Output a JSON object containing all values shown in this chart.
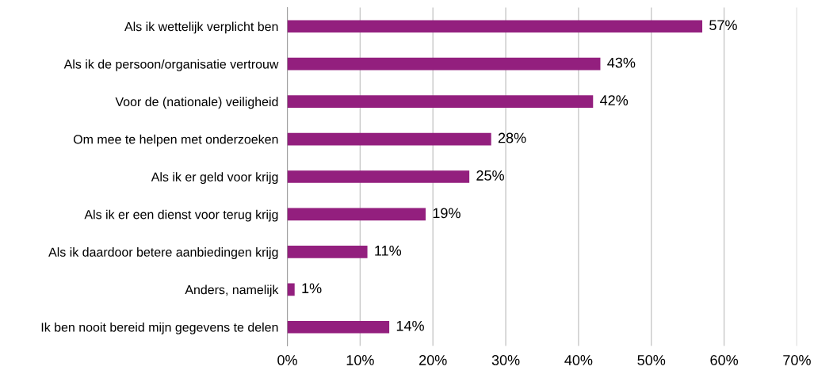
{
  "chart_data": {
    "type": "bar",
    "orientation": "horizontal",
    "categories": [
      "Als ik wettelijk verplicht ben",
      "Als ik de persoon/organisatie vertrouw",
      "Voor de (nationale) veiligheid",
      "Om mee te helpen met onderzoeken",
      "Als ik er geld voor krijg",
      "Als ik er een dienst voor terug krijg",
      "Als ik daardoor betere aanbiedingen krijg",
      "Anders, namelijk",
      "Ik ben nooit bereid mijn gegevens te delen"
    ],
    "values": [
      57,
      43,
      42,
      28,
      25,
      19,
      11,
      1,
      14
    ],
    "value_labels": [
      "57%",
      "43%",
      "42%",
      "28%",
      "25%",
      "19%",
      "11%",
      "1%",
      "14%"
    ],
    "color": "#931f7e",
    "xlim": [
      0,
      70
    ],
    "xticks": [
      {
        "value": 0,
        "label": "0%"
      },
      {
        "value": 10,
        "label": "10%"
      },
      {
        "value": 20,
        "label": "20%"
      },
      {
        "value": 30,
        "label": "30%"
      },
      {
        "value": 40,
        "label": "40%"
      },
      {
        "value": 50,
        "label": "50%"
      },
      {
        "value": 60,
        "label": "60%"
      },
      {
        "value": 70,
        "label": "70%"
      }
    ],
    "grid": "x"
  }
}
